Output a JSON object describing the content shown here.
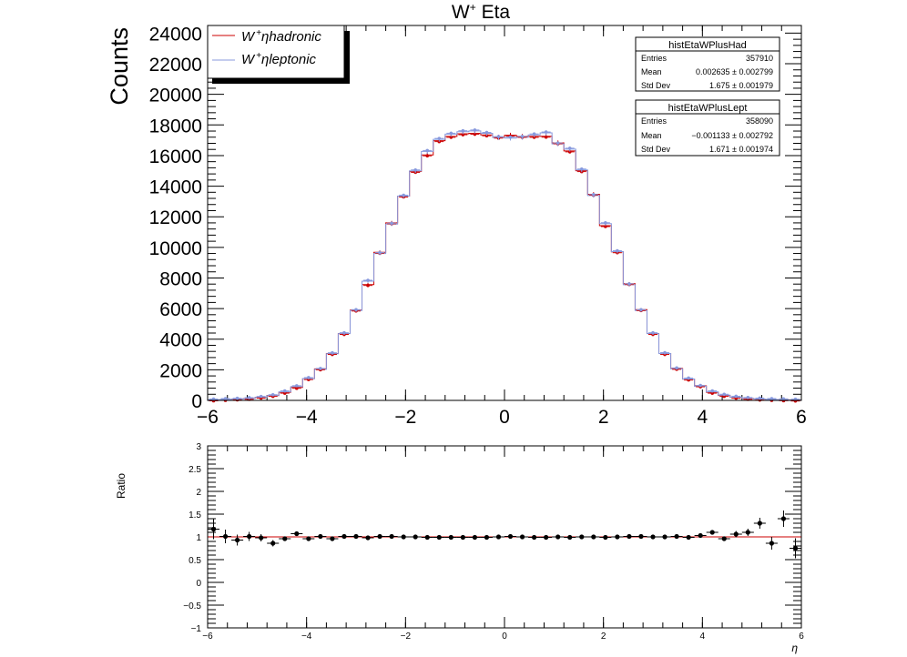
{
  "chart_data": [
    {
      "type": "line",
      "title": "W",
      "title_sup": "+",
      "title_rest": " Eta",
      "ylabel": "Counts",
      "xlim": [
        -6,
        6
      ],
      "ylim": [
        0,
        24500
      ],
      "xticks": [
        "−6",
        "−4",
        "−2",
        "0",
        "2",
        "4",
        "6"
      ],
      "xtick_values": [
        -6,
        -4,
        -2,
        0,
        2,
        4,
        6
      ],
      "yticks": [
        "0",
        "2000",
        "4000",
        "6000",
        "8000",
        "10000",
        "12000",
        "14000",
        "16000",
        "18000",
        "20000",
        "22000",
        "24000"
      ],
      "ytick_values": [
        0,
        2000,
        4000,
        6000,
        8000,
        10000,
        12000,
        14000,
        16000,
        18000,
        20000,
        22000,
        24000
      ],
      "bin_width": 0.24,
      "x": [
        -5.88,
        -5.64,
        -5.4,
        -5.16,
        -4.92,
        -4.68,
        -4.44,
        -4.2,
        -3.96,
        -3.72,
        -3.48,
        -3.24,
        -3.0,
        -2.76,
        -2.52,
        -2.28,
        -2.04,
        -1.8,
        -1.56,
        -1.32,
        -1.08,
        -0.84,
        -0.6,
        -0.36,
        -0.12,
        0.12,
        0.36,
        0.6,
        0.84,
        1.08,
        1.32,
        1.56,
        1.8,
        2.04,
        2.28,
        2.52,
        2.76,
        3.0,
        3.24,
        3.48,
        3.72,
        3.96,
        4.2,
        4.44,
        4.68,
        4.92,
        5.16,
        5.4,
        5.64,
        5.88
      ],
      "legend": {
        "placement": "top-left",
        "entries": [
          {
            "label_main": "W",
            "label_sup": "+",
            "label_greek": "η",
            "label_rest": "hadronic",
            "color": "#cc0000"
          },
          {
            "label_main": "W",
            "label_sup": "+",
            "label_greek": "η",
            "label_rest": "leptonic",
            "color": "#8899dd"
          }
        ]
      },
      "series": [
        {
          "values": [
            30,
            60,
            90,
            130,
            210,
            320,
            530,
            850,
            1420,
            2060,
            3060,
            4370,
            5900,
            7570,
            9680,
            11600,
            13350,
            14960,
            16040,
            16970,
            17250,
            17420,
            17450,
            17350,
            17200,
            17330,
            17250,
            17250,
            17260,
            16830,
            16300,
            15010,
            13470,
            11420,
            9710,
            7630,
            5930,
            4370,
            3060,
            2090,
            1390,
            950,
            530,
            320,
            200,
            130,
            80,
            60,
            40,
            20
          ],
          "color": "#cc0000"
        },
        {
          "values": [
            30,
            60,
            80,
            120,
            200,
            310,
            560,
            900,
            1430,
            2030,
            3050,
            4360,
            5870,
            7790,
            9600,
            11520,
            13350,
            15000,
            16270,
            17060,
            17400,
            17560,
            17610,
            17450,
            17180,
            17140,
            17190,
            17350,
            17480,
            16760,
            16420,
            15060,
            13390,
            11550,
            9720,
            7560,
            5870,
            4360,
            3060,
            2060,
            1400,
            920,
            560,
            340,
            210,
            130,
            90,
            60,
            40,
            20
          ],
          "color": "#8899dd"
        }
      ],
      "stats_boxes": [
        {
          "title": "histEtaWPlusHad",
          "rows": [
            {
              "label": "Entries",
              "value": "357910"
            },
            {
              "label": "Mean",
              "value": "0.002635 ± 0.002799"
            },
            {
              "label": "Std Dev",
              "value": "1.675 ± 0.001979"
            }
          ]
        },
        {
          "title": "histEtaWPlusLept",
          "rows": [
            {
              "label": "Entries",
              "value": "358090"
            },
            {
              "label": "Mean",
              "value": "−0.001133 ± 0.002792"
            },
            {
              "label": "Std Dev",
              "value": "1.671 ± 0.001974"
            }
          ]
        }
      ]
    },
    {
      "type": "scatter",
      "title": "",
      "xlabel": "η",
      "ylabel": "Ratio",
      "xlim": [
        -6,
        6
      ],
      "ylim": [
        -1,
        3
      ],
      "xticks": [
        "−6",
        "−4",
        "−2",
        "0",
        "2",
        "4",
        "6"
      ],
      "xtick_values": [
        -6,
        -4,
        -2,
        0,
        2,
        4,
        6
      ],
      "yticks": [
        "−1",
        "−0.5",
        "0",
        "0.5",
        "1",
        "1.5",
        "2",
        "2.5",
        "3"
      ],
      "ytick_values": [
        -1,
        -0.5,
        0,
        0.5,
        1,
        1.5,
        2,
        2.5,
        3
      ],
      "reference_line": 1,
      "reference_color": "#cc0000",
      "x": [
        -5.88,
        -5.64,
        -5.4,
        -5.16,
        -4.92,
        -4.68,
        -4.44,
        -4.2,
        -3.96,
        -3.72,
        -3.48,
        -3.24,
        -3.0,
        -2.76,
        -2.52,
        -2.28,
        -2.04,
        -1.8,
        -1.56,
        -1.32,
        -1.08,
        -0.84,
        -0.6,
        -0.36,
        -0.12,
        0.12,
        0.36,
        0.6,
        0.84,
        1.08,
        1.32,
        1.56,
        1.8,
        2.04,
        2.28,
        2.52,
        2.76,
        3.0,
        3.24,
        3.48,
        3.72,
        3.96,
        4.2,
        4.44,
        4.68,
        4.92,
        5.16,
        5.4,
        5.64,
        5.88
      ],
      "values": [
        1.17,
        1.01,
        0.93,
        1.01,
        0.98,
        0.86,
        0.96,
        1.07,
        0.96,
        1.01,
        0.96,
        1.01,
        1.01,
        0.98,
        1.01,
        1.01,
        1.0,
        1.0,
        0.99,
        0.99,
        0.99,
        0.99,
        0.99,
        0.99,
        1.0,
        1.01,
        1.0,
        0.99,
        0.99,
        1.0,
        0.99,
        1.0,
        1.0,
        0.99,
        1.0,
        1.01,
        1.01,
        1.0,
        1.0,
        1.01,
        0.99,
        1.03,
        1.1,
        0.96,
        1.06,
        1.1,
        1.3,
        0.86,
        1.4,
        0.75
      ],
      "errors": [
        0.22,
        0.15,
        0.12,
        0.1,
        0.08,
        0.07,
        0.05,
        0.04,
        0.03,
        0.03,
        0.02,
        0.02,
        0.02,
        0.02,
        0.02,
        0.02,
        0.02,
        0.02,
        0.02,
        0.02,
        0.02,
        0.02,
        0.02,
        0.02,
        0.02,
        0.02,
        0.02,
        0.02,
        0.02,
        0.02,
        0.02,
        0.02,
        0.02,
        0.02,
        0.02,
        0.02,
        0.02,
        0.02,
        0.02,
        0.02,
        0.03,
        0.03,
        0.04,
        0.05,
        0.07,
        0.08,
        0.12,
        0.14,
        0.18,
        0.22
      ]
    }
  ]
}
